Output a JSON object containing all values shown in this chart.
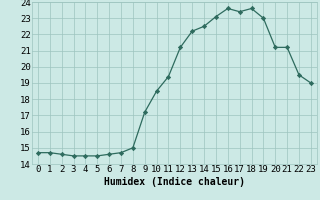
{
  "x": [
    0,
    1,
    2,
    3,
    4,
    5,
    6,
    7,
    8,
    9,
    10,
    11,
    12,
    13,
    14,
    15,
    16,
    17,
    18,
    19,
    20,
    21,
    22,
    23
  ],
  "y": [
    14.7,
    14.7,
    14.6,
    14.5,
    14.5,
    14.5,
    14.6,
    14.7,
    15.0,
    17.2,
    18.5,
    19.4,
    21.2,
    22.2,
    22.5,
    23.1,
    23.6,
    23.4,
    23.6,
    23.0,
    21.2,
    21.2,
    19.5,
    19.0
  ],
  "xlabel": "Humidex (Indice chaleur)",
  "xlim": [
    -0.5,
    23.5
  ],
  "ylim": [
    14,
    24
  ],
  "yticks": [
    14,
    15,
    16,
    17,
    18,
    19,
    20,
    21,
    22,
    23,
    24
  ],
  "xticks": [
    0,
    1,
    2,
    3,
    4,
    5,
    6,
    7,
    8,
    9,
    10,
    11,
    12,
    13,
    14,
    15,
    16,
    17,
    18,
    19,
    20,
    21,
    22,
    23
  ],
  "line_color": "#2e6b5e",
  "marker": "D",
  "marker_size": 2.2,
  "bg_color": "#cce9e5",
  "grid_color": "#9dc4bf",
  "xlabel_fontsize": 7,
  "tick_fontsize": 6.5
}
